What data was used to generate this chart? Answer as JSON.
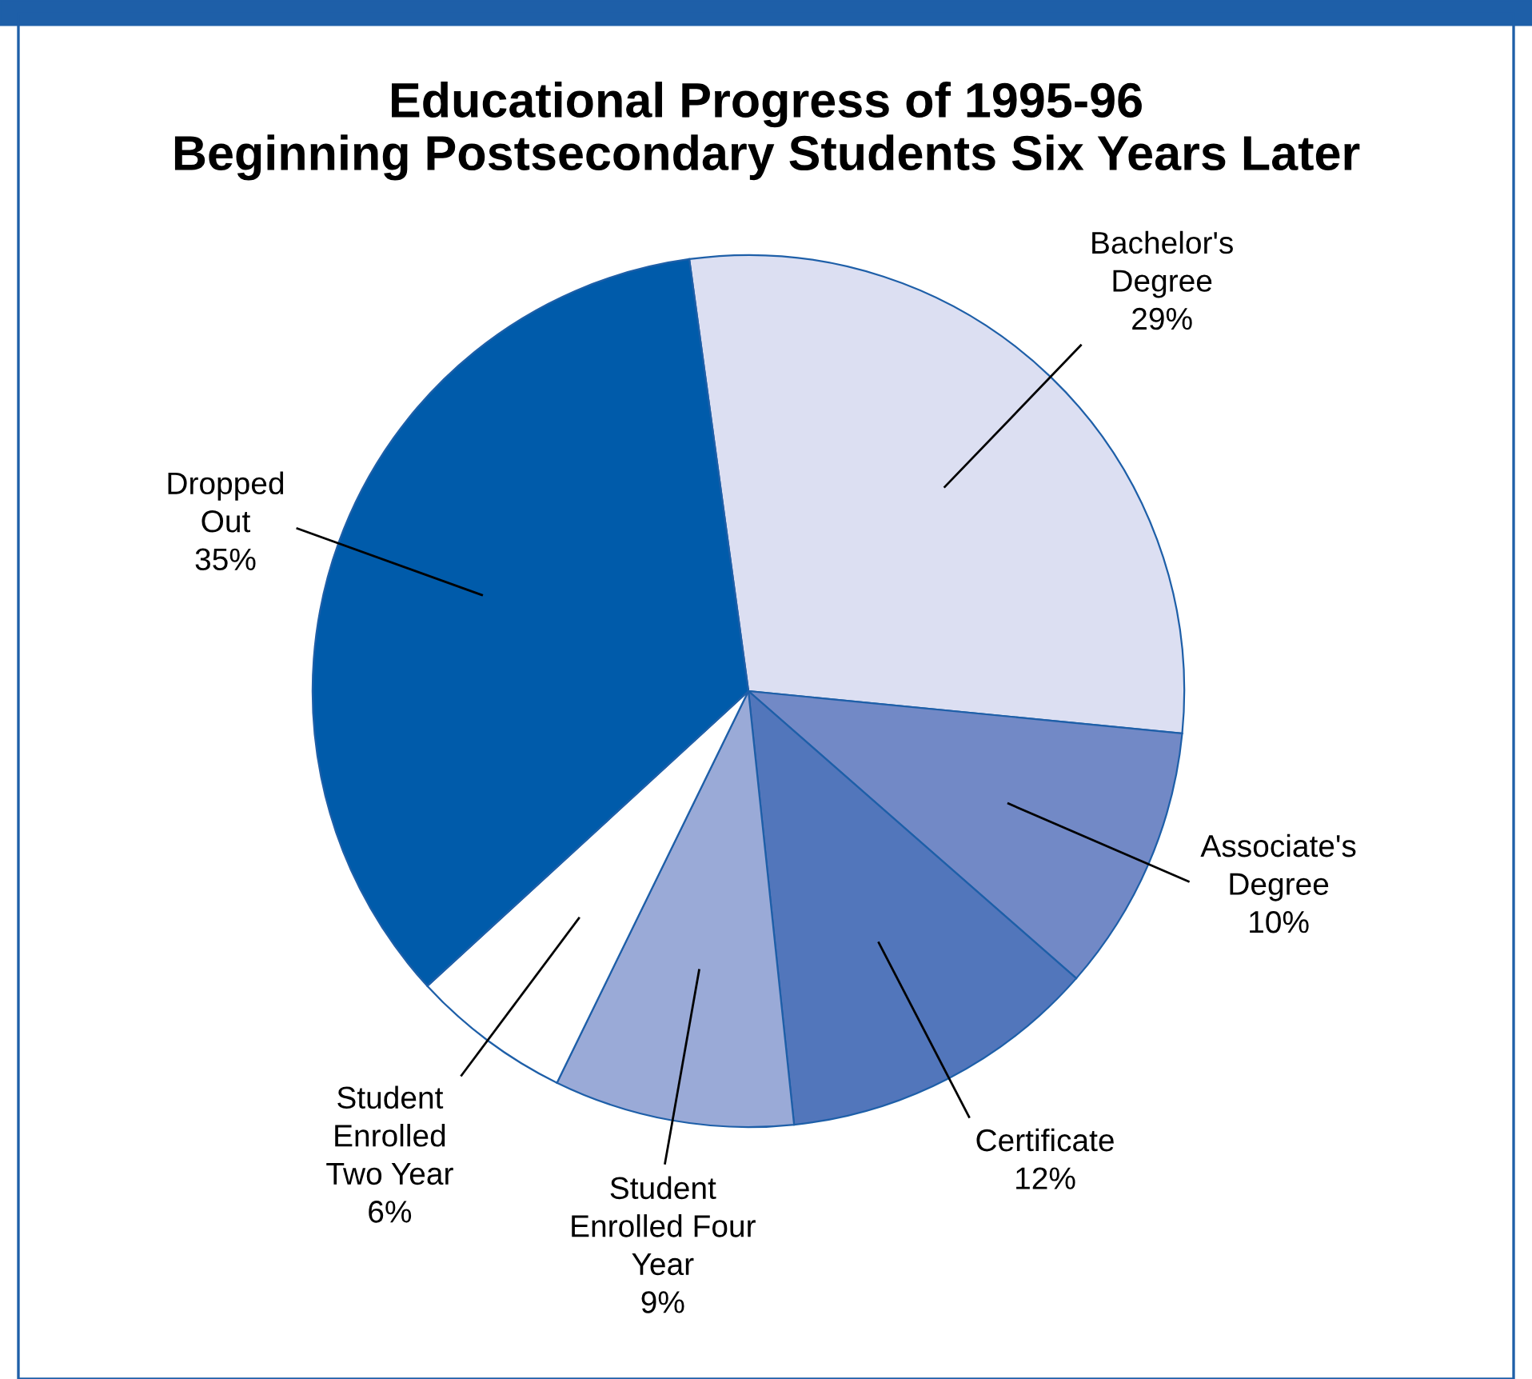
{
  "chart_data": {
    "type": "pie",
    "title": "Educational Progress of 1995-96\nBeginning Postsecondary Students Six Years Later",
    "categories": [
      "Bachelor's\nDegree",
      "Associate's\nDegree",
      "Certificate",
      "Student\nEnrolled Four\nYear",
      "Student\nEnrolled\nTwo Year",
      "Dropped\nOut"
    ],
    "values": [
      29,
      10,
      12,
      9,
      6,
      35
    ],
    "value_labels": [
      "29%",
      "10%",
      "12%",
      "9%",
      "6%",
      "35%"
    ],
    "colors": [
      "#dcdff2",
      "#7289c6",
      "#5276bb",
      "#9aaad7",
      "#ffffff",
      "#005baa"
    ]
  }
}
